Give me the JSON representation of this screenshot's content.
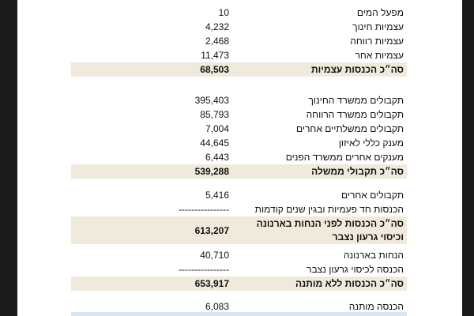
{
  "sections": [
    {
      "rows": [
        [
          "מפעל המים",
          "10"
        ],
        [
          "עצמיות חינוך",
          "4,232"
        ],
        [
          "עצמיות רווחה",
          "2,468"
        ],
        [
          "עצמיות אחר",
          "11,473"
        ]
      ],
      "total": {
        "label": "סה״כ הכנסות עצמיות",
        "value": "68,503"
      }
    },
    {
      "rows": [
        [
          "תקבולים ממשרד החינוך",
          "395,403"
        ],
        [
          "תקבולים ממשרד הרווחה",
          "85,793"
        ],
        [
          "תקבולים ממשלתיים אחרים",
          "7,004"
        ],
        [
          "מענק כללי לאיזון",
          "44,645"
        ],
        [
          "מענקים אחרים ממשרד הפנים",
          "6,443"
        ]
      ],
      "total": {
        "label": "סה״כ תקבולי ממשלה",
        "value": "539,288"
      }
    },
    {
      "rows": [
        [
          "תקבולים אחרים",
          "5,416"
        ],
        [
          "הכנסות חד פעמיות ובגין שנים קודמות",
          "----------------"
        ]
      ],
      "total": {
        "label": [
          "סה״כ הכנסות לפני הנחות בארנונה",
          "וכיסוי גרעון נצבר"
        ],
        "value": "613,207"
      }
    },
    {
      "rows": [
        [
          "הנחות בארנונה",
          "40,710"
        ],
        [
          "הכנסה לכיסוי גרעון נצבר",
          "----------------"
        ]
      ],
      "total": {
        "label": "סה״כ הכנסות ללא מותנה",
        "value": "653,917"
      }
    },
    {
      "rows": [
        [
          "הכנסה מותנה",
          "6,083"
        ]
      ]
    }
  ]
}
